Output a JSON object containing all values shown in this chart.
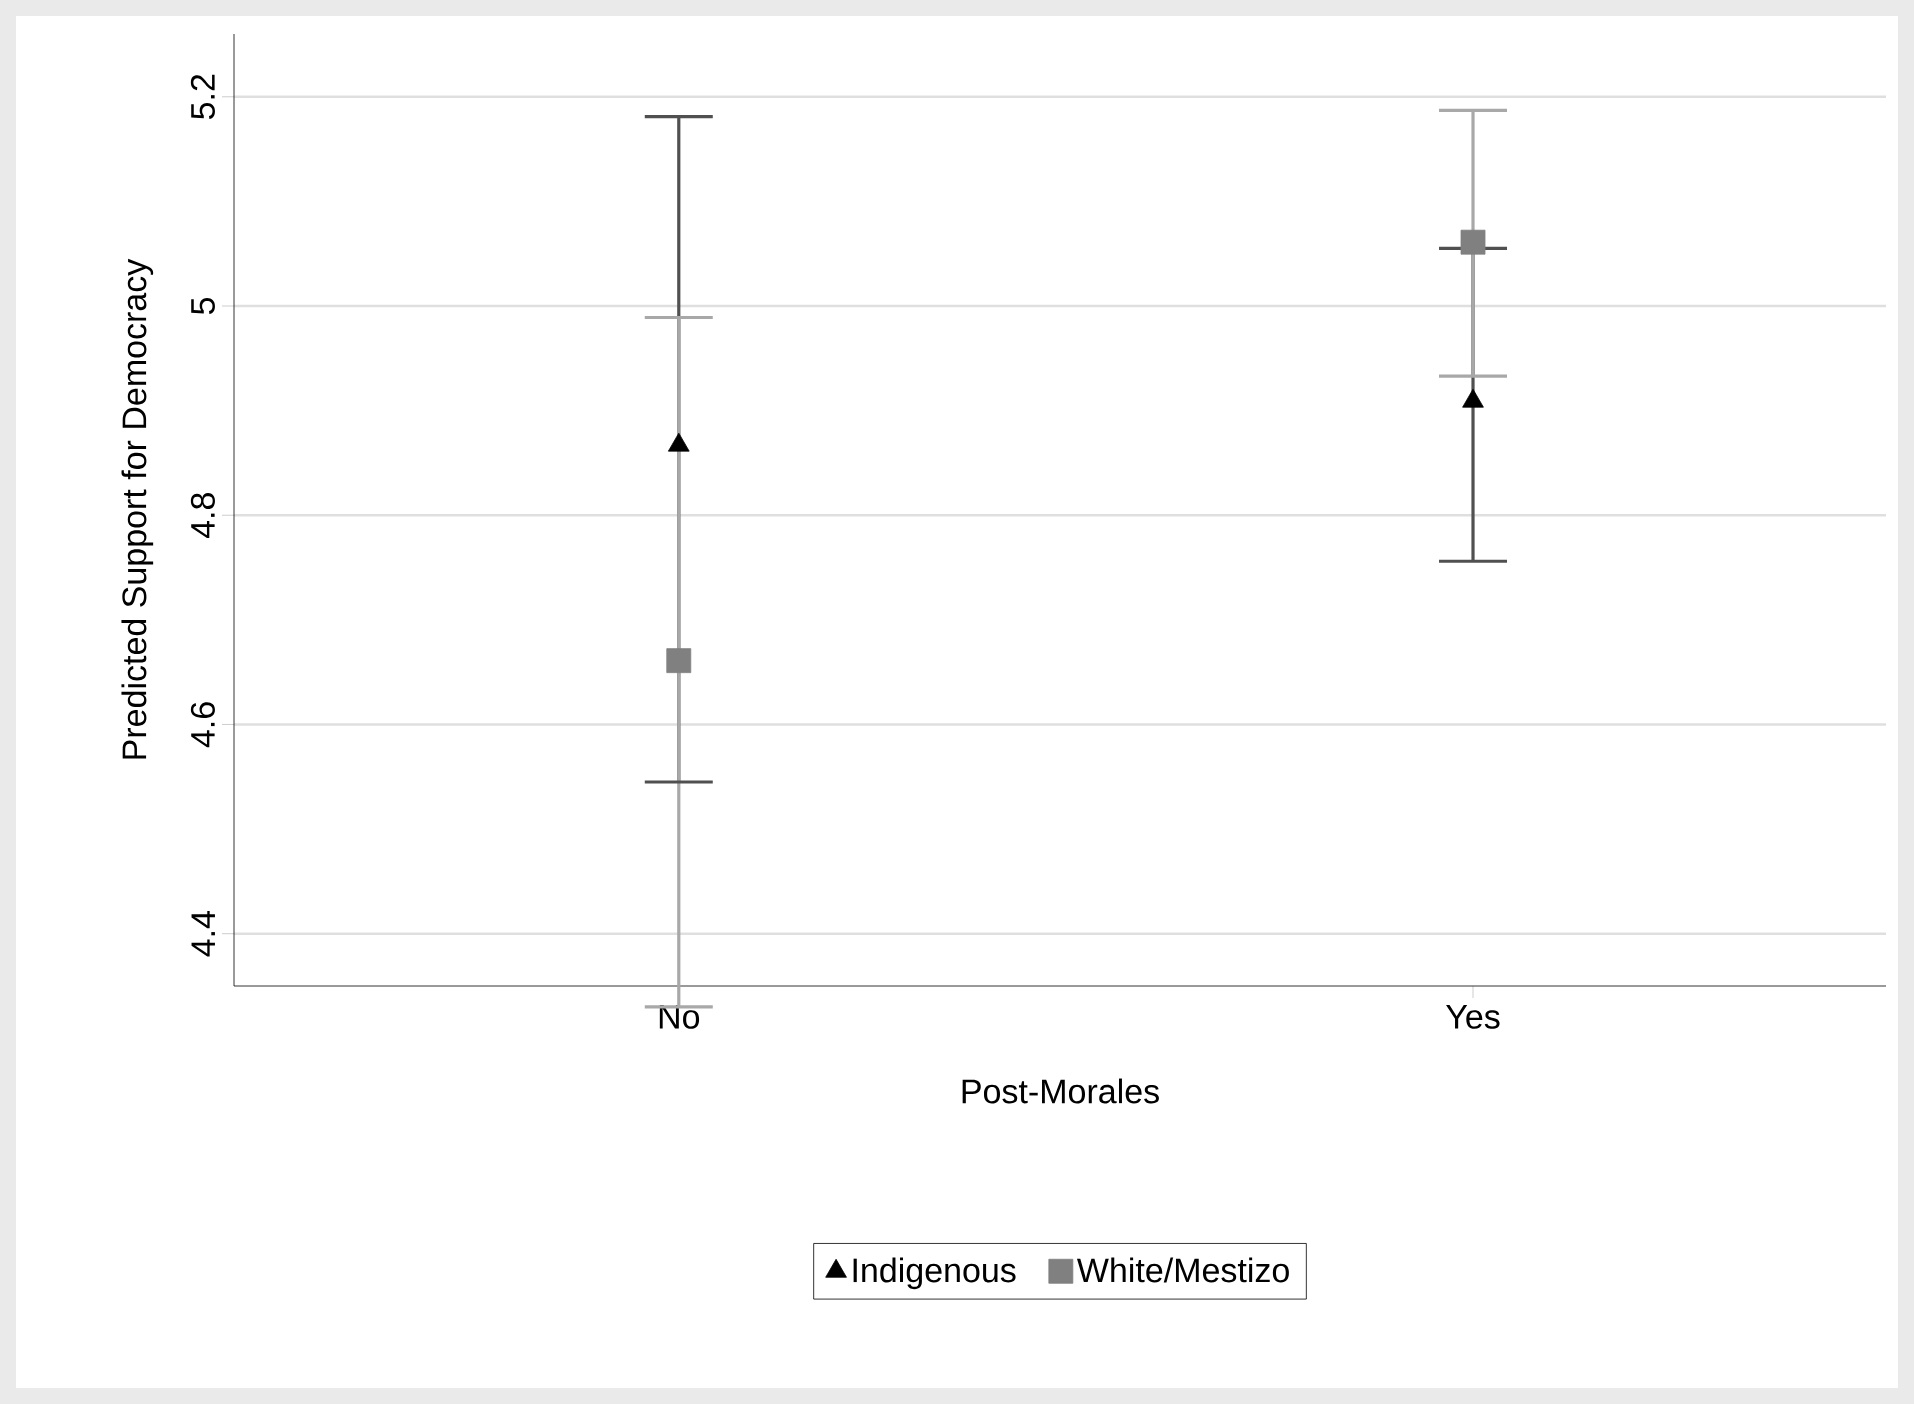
{
  "chart_data": {
    "type": "scatter",
    "xlabel": "Post-Morales",
    "ylabel": "Predicted Support for Democracy",
    "categories": [
      "No",
      "Yes"
    ],
    "series": [
      {
        "name": "Indigenous",
        "color": "#000000",
        "marker": "triangle",
        "values": [
          4.867,
          4.909
        ],
        "errors": [
          [
            4.545,
            5.181
          ],
          [
            4.756,
            5.055
          ]
        ]
      },
      {
        "name": "White/Mestizo",
        "color": "#808080",
        "marker": "square",
        "values": [
          4.661,
          5.061
        ],
        "errors": [
          [
            4.33,
            4.989
          ],
          [
            4.933,
            5.187
          ]
        ]
      }
    ],
    "ylim": [
      4.35,
      5.26
    ],
    "yticks": [
      4.4,
      4.6,
      4.8,
      5,
      5.2
    ],
    "grid": "y",
    "legend": "bottom"
  }
}
